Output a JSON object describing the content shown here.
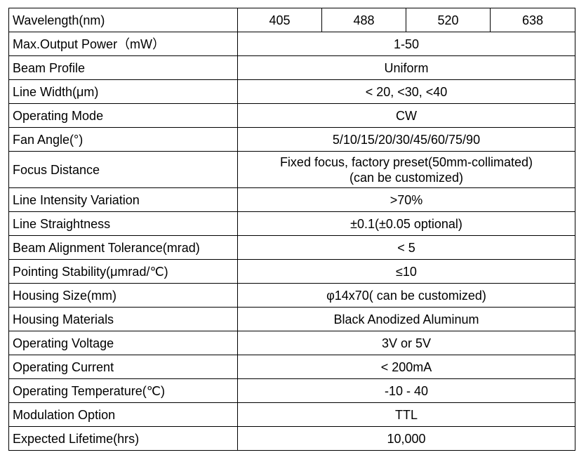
{
  "wavelength_row": {
    "label": "Wavelength(nm)",
    "values": [
      "405",
      "488",
      "520",
      "638"
    ]
  },
  "specs": [
    {
      "label": "Max.Output Power（mW）",
      "value": "1-50"
    },
    {
      "label": "Beam Profile",
      "value": "Uniform"
    },
    {
      "label": "Line Width(μm)",
      "value": "< 20, <30, <40"
    },
    {
      "label": "Operating Mode",
      "value": "CW"
    },
    {
      "label": "Fan Angle(°)",
      "value": "5/10/15/20/30/45/60/75/90"
    },
    {
      "label": "Focus Distance",
      "value": "Fixed focus, factory preset(50mm-collimated)",
      "value2": "(can be customized)"
    },
    {
      "label": "Line Intensity Variation",
      "value": ">70%"
    },
    {
      "label": "Line Straightness",
      "value": "±0.1(±0.05 optional)"
    },
    {
      "label": "Beam Alignment Tolerance(mrad)",
      "value": "< 5"
    },
    {
      "label": "Pointing Stability(μmrad/℃)",
      "value": "≤10"
    },
    {
      "label": "Housing Size(mm)",
      "value": "φ14x70( can be customized)"
    },
    {
      "label": "Housing Materials",
      "value": "Black Anodized Aluminum"
    },
    {
      "label": "Operating Voltage",
      "value": "3V or 5V"
    },
    {
      "label": "Operating Current",
      "value": "< 200mA"
    },
    {
      "label": "Operating Temperature(℃)",
      "value": "-10 - 40"
    },
    {
      "label": "Modulation Option",
      "value": "TTL"
    },
    {
      "label": "Expected Lifetime(hrs)",
      "value": "10,000"
    }
  ]
}
